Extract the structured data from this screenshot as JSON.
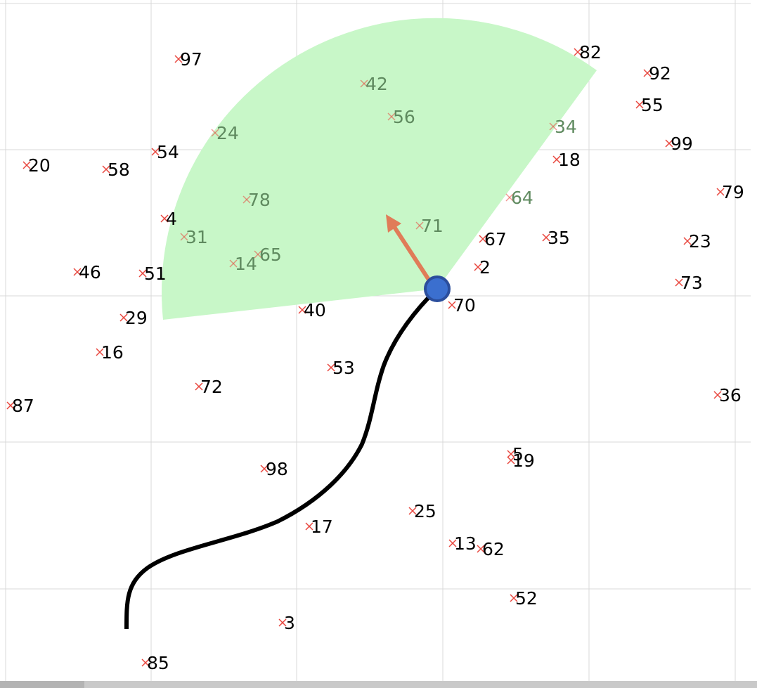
{
  "fov_color": "#c8f7c8",
  "path_color": "#000000",
  "agent_color": "#3b6fcf",
  "agent_outline": "#2b4e9c",
  "heading_color": "#e07c58",
  "marker_color": "#e8463e",
  "label_color": "#000000",
  "label_in_fov_color": "#5f8a5f",
  "grid_color": "#d9d9d9",
  "landmarks": [
    {
      "label": "97"
    },
    {
      "label": "82"
    },
    {
      "label": "92"
    },
    {
      "label": "55"
    },
    {
      "label": "42"
    },
    {
      "label": "56"
    },
    {
      "label": "24"
    },
    {
      "label": "34"
    },
    {
      "label": "99"
    },
    {
      "label": "54"
    },
    {
      "label": "20"
    },
    {
      "label": "58"
    },
    {
      "label": "18"
    },
    {
      "label": "79"
    },
    {
      "label": "78"
    },
    {
      "label": "64"
    },
    {
      "label": "4"
    },
    {
      "label": "71"
    },
    {
      "label": "31"
    },
    {
      "label": "67"
    },
    {
      "label": "35"
    },
    {
      "label": "23"
    },
    {
      "label": "65"
    },
    {
      "label": "14"
    },
    {
      "label": "2"
    },
    {
      "label": "46"
    },
    {
      "label": "51"
    },
    {
      "label": "73"
    },
    {
      "label": "70"
    },
    {
      "label": "40"
    },
    {
      "label": "29"
    },
    {
      "label": "16"
    },
    {
      "label": "53"
    },
    {
      "label": "72"
    },
    {
      "label": "36"
    },
    {
      "label": "87"
    },
    {
      "label": "5"
    },
    {
      "label": "19"
    },
    {
      "label": "98"
    },
    {
      "label": "25"
    },
    {
      "label": "17"
    },
    {
      "label": "13"
    },
    {
      "label": "62"
    },
    {
      "label": "52"
    },
    {
      "label": "3"
    },
    {
      "label": "85"
    }
  ]
}
